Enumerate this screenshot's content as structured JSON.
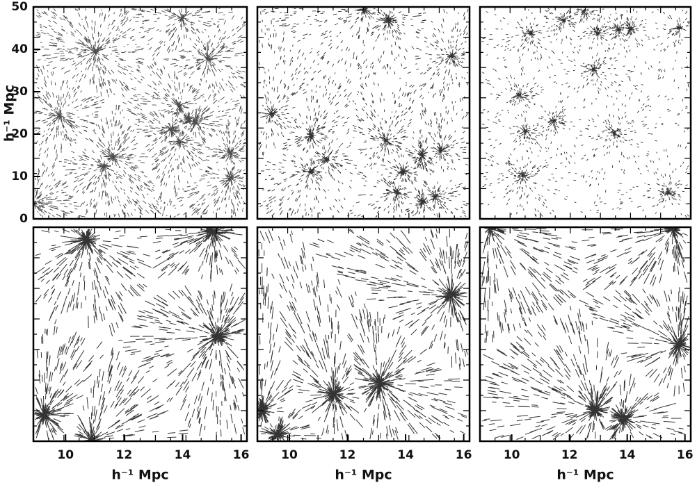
{
  "figure": {
    "y_axis": {
      "label": "h⁻¹ Mpc",
      "ylim": [
        0,
        50
      ],
      "yticks": [
        0,
        10,
        20,
        30,
        40,
        50
      ]
    },
    "columns": [
      {
        "x_label": "h⁻¹ Mpc",
        "xlim": [
          8.9,
          16.2
        ],
        "xticks": [
          10,
          12,
          14,
          16
        ]
      },
      {
        "x_label": "h⁻¹ Mpc",
        "xlim": [
          8.9,
          16.2
        ],
        "xticks": [
          10,
          12,
          14,
          16
        ]
      },
      {
        "x_label": "h⁻¹ Mpc",
        "xlim": [
          8.9,
          16.2
        ],
        "xticks": [
          10,
          12,
          14,
          16
        ]
      }
    ]
  }
}
